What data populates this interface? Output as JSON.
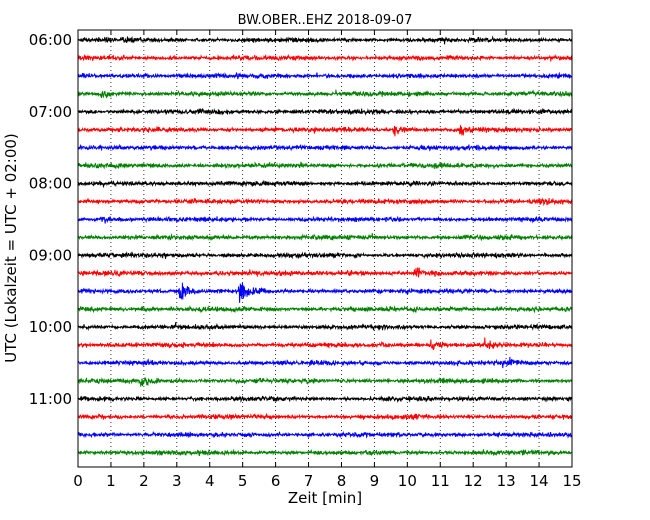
{
  "chart_data": {
    "type": "line",
    "title": "BW.OBER..EHZ 2018-09-07",
    "xlabel": "Zeit  [min]",
    "ylabel": "UTC (Lokalzeit = UTC + 02:00)",
    "xlim": [
      0,
      15
    ],
    "x_ticks": [
      "0",
      "1",
      "2",
      "3",
      "4",
      "5",
      "6",
      "7",
      "8",
      "9",
      "10",
      "11",
      "12",
      "13",
      "14",
      "15"
    ],
    "y_ticks": [
      "06:00",
      "07:00",
      "08:00",
      "09:00",
      "10:00",
      "11:00"
    ],
    "trace_interval_min": 15,
    "trace_count": 24,
    "trace_colors": [
      "#000000",
      "#ff0000",
      "#0000ff",
      "#008000"
    ],
    "grid": "vertical dotted at each minute",
    "events": [
      {
        "trace_start": "07:15",
        "x_min": 9.6,
        "amplitude": 1.8
      },
      {
        "trace_start": "07:15",
        "x_min": 11.6,
        "amplitude": 1.3
      },
      {
        "trace_start": "08:30",
        "x_min": 0.7,
        "amplitude": 1.4
      },
      {
        "trace_start": "09:15",
        "x_min": 8.2,
        "amplitude": 1.5
      },
      {
        "trace_start": "09:15",
        "x_min": 10.2,
        "amplitude": 1.6
      },
      {
        "trace_start": "09:30",
        "x_min": 3.1,
        "amplitude": 3.5
      },
      {
        "trace_start": "09:30",
        "x_min": 4.9,
        "amplitude": 3.2
      },
      {
        "trace_start": "10:15",
        "x_min": 10.7,
        "amplitude": 1.8
      },
      {
        "trace_start": "10:15",
        "x_min": 12.3,
        "amplitude": 1.7
      },
      {
        "trace_start": "10:30",
        "x_min": 12.9,
        "amplitude": 2.0
      },
      {
        "trace_start": "10:45",
        "x_min": 1.9,
        "amplitude": 1.3
      },
      {
        "trace_start": "06:45",
        "x_min": 0.7,
        "amplitude": 1.3
      },
      {
        "trace_start": "08:15",
        "x_min": 14.0,
        "amplitude": 1.2
      }
    ]
  }
}
